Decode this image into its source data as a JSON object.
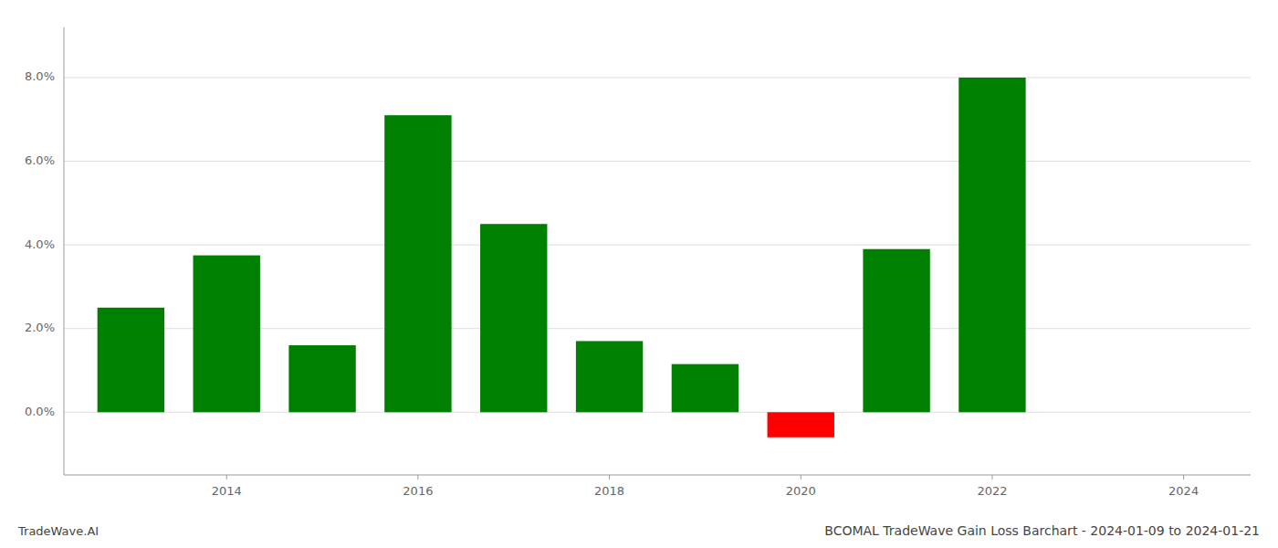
{
  "chart_data": {
    "type": "bar",
    "title": "BCOMAL TradeWave Gain Loss Barchart - 2024-01-09 to 2024-01-21",
    "annotations": [
      "TradeWave.AI"
    ],
    "x": [
      2013,
      2014,
      2015,
      2016,
      2017,
      2018,
      2019,
      2020,
      2021,
      2022,
      2023
    ],
    "values": [
      0.025,
      0.0375,
      0.016,
      0.071,
      0.045,
      0.017,
      0.0115,
      -0.006,
      0.039,
      0.08,
      0.0
    ],
    "colors": [
      "#008000",
      "#008000",
      "#008000",
      "#008000",
      "#008000",
      "#008000",
      "#008000",
      "#ff0000",
      "#008000",
      "#008000",
      "#008000"
    ],
    "xlim": [
      2012.3,
      2024.7
    ],
    "xticks": [
      2014,
      2016,
      2018,
      2020,
      2022,
      2024
    ],
    "ylim": [
      -0.015,
      0.092
    ],
    "yticks": [
      {
        "value": 0.0,
        "label": "0.0%"
      },
      {
        "value": 0.02,
        "label": "2.0%"
      },
      {
        "value": 0.04,
        "label": "4.0%"
      },
      {
        "value": 0.06,
        "label": "6.0%"
      },
      {
        "value": 0.08,
        "label": "8.0%"
      }
    ],
    "grid": true
  }
}
